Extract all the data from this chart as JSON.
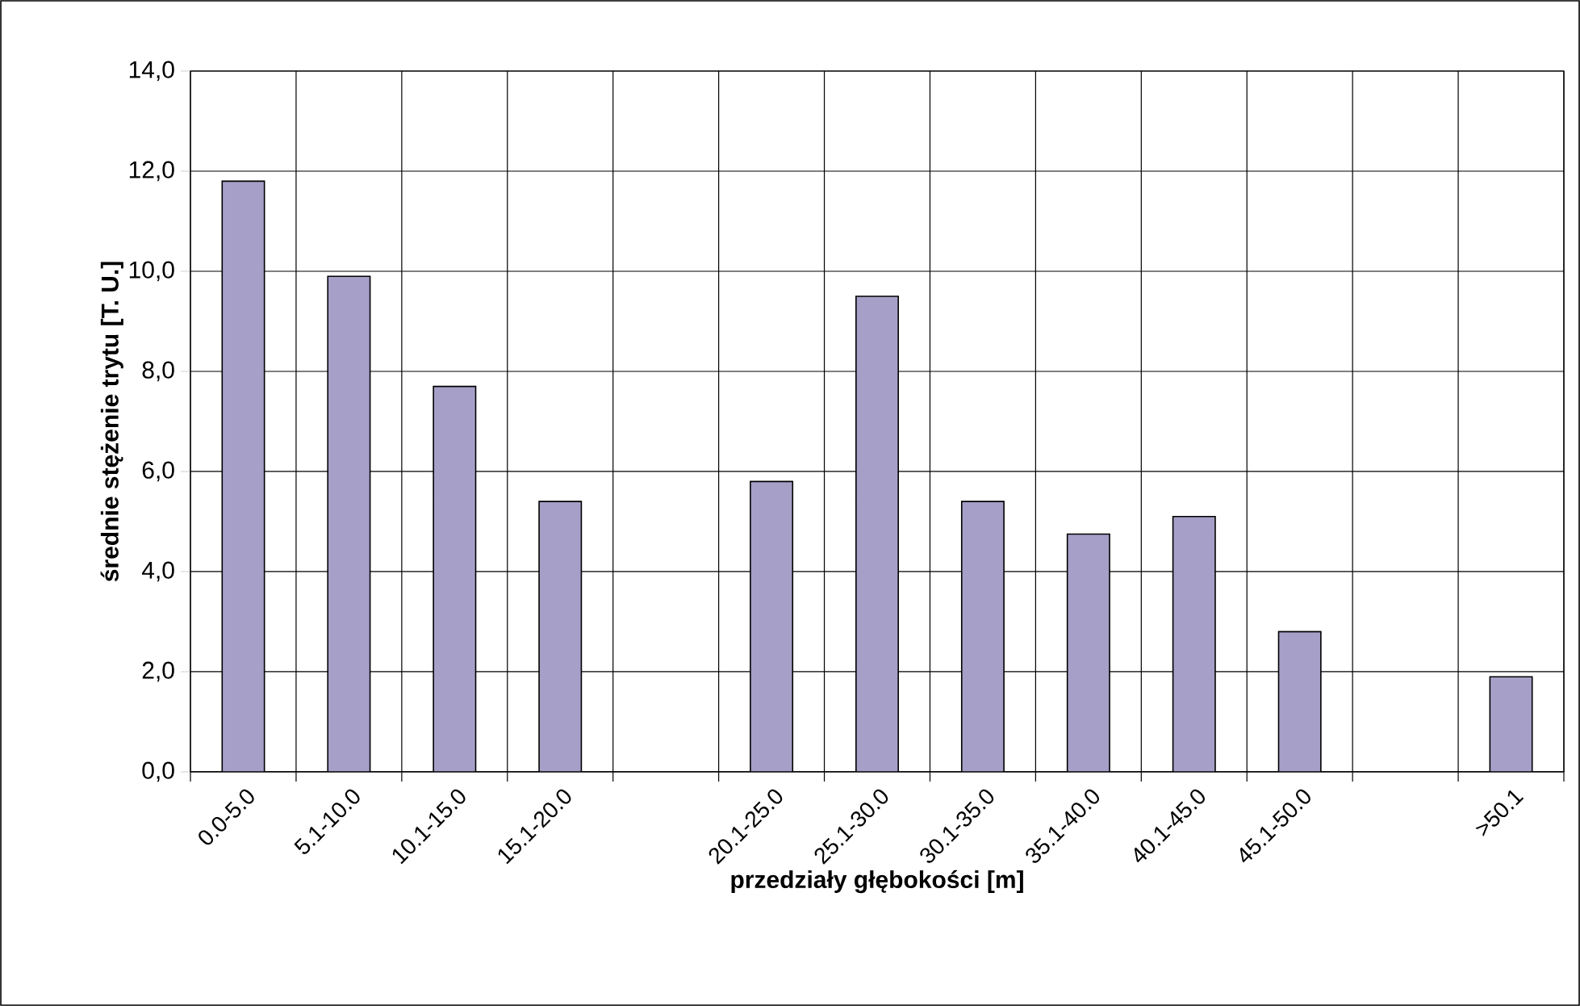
{
  "chart_data": {
    "type": "bar",
    "xlabel": "przedziały głębokości [m]",
    "ylabel": "średnie stężenie trytu [T. U.]",
    "categories": [
      "0.0-5.0",
      "5.1-10.0",
      "10.1-15.0",
      "15.1-20.0",
      null,
      "20.1-25.0",
      "25.1-30.0",
      "30.1-35.0",
      "35.1-40.0",
      "40.1-45.0",
      "45.1-50.0",
      null,
      ">50.1"
    ],
    "values": [
      11.8,
      9.9,
      7.7,
      5.4,
      null,
      5.8,
      9.5,
      5.4,
      4.75,
      5.1,
      2.8,
      null,
      1.9
    ],
    "color": "#a6a0c8",
    "ylim": [
      0,
      14
    ],
    "yticks": [
      {
        "value": 0,
        "label": "0,0"
      },
      {
        "value": 2,
        "label": "2,0"
      },
      {
        "value": 4,
        "label": "4,0"
      },
      {
        "value": 6,
        "label": "6,0"
      },
      {
        "value": 8,
        "label": "8,0"
      },
      {
        "value": 10,
        "label": "10,0"
      },
      {
        "value": 12,
        "label": "12,0"
      },
      {
        "value": 14,
        "label": "14,0"
      }
    ],
    "grid": true
  }
}
